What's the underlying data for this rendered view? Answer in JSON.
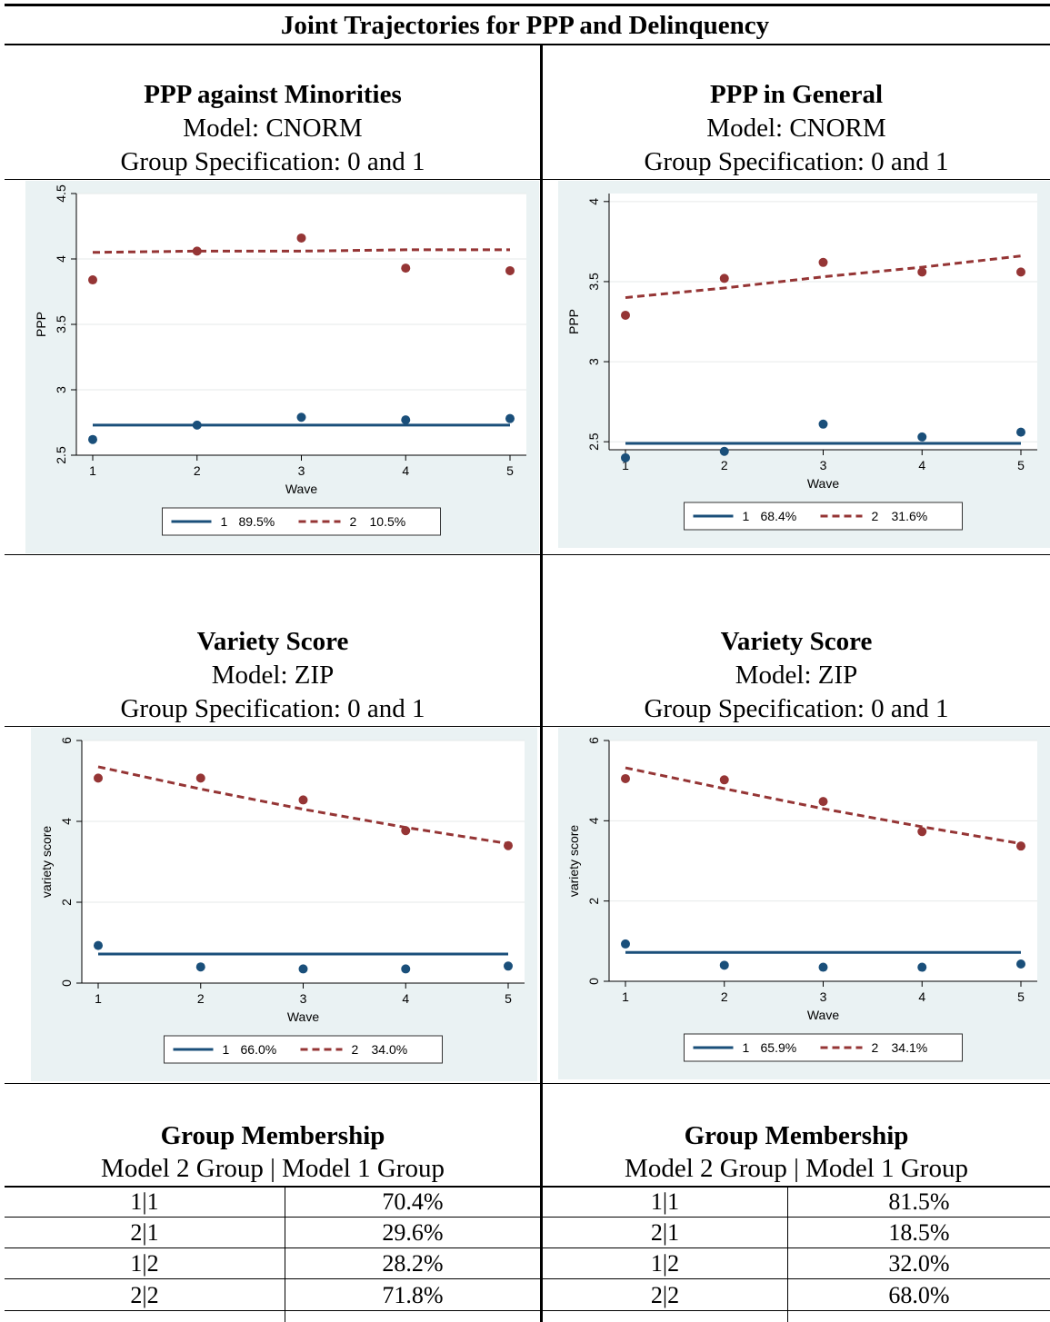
{
  "title": "Joint Trajectories for PPP and Delinquency",
  "panels": [
    {
      "heading": "PPP against Minorities",
      "model": "Model: CNORM",
      "spec": "Group Specification: 0 and 1",
      "chart": "ppp_minorities"
    },
    {
      "heading": "PPP in General",
      "model": "Model: CNORM",
      "spec": "Group Specification: 0 and 1",
      "chart": "ppp_general"
    },
    {
      "heading": "Variety Score",
      "model": "Model: ZIP",
      "spec": "Group Specification: 0 and 1",
      "chart": "variety_left"
    },
    {
      "heading": "Variety Score",
      "model": "Model: ZIP",
      "spec": "Group Specification: 0 and 1",
      "chart": "variety_right"
    }
  ],
  "membership": [
    {
      "heading": "Group Membership",
      "subheading": "Model 2 Group | Model 1 Group",
      "rows": [
        {
          "group": "1|1",
          "pct": "70.4%"
        },
        {
          "group": "2|1",
          "pct": "29.6%"
        },
        {
          "group": "1|2",
          "pct": "28.2%"
        },
        {
          "group": "2|2",
          "pct": "71.8%"
        }
      ]
    },
    {
      "heading": "Group Membership",
      "subheading": "Model 2 Group | Model 1 Group",
      "rows": [
        {
          "group": "1|1",
          "pct": "81.5%"
        },
        {
          "group": "2|1",
          "pct": "18.5%"
        },
        {
          "group": "1|2",
          "pct": "32.0%"
        },
        {
          "group": "2|2",
          "pct": "68.0%"
        }
      ]
    }
  ],
  "colors": {
    "group1": "#1a4f7a",
    "group2": "#953535",
    "panel_bg": "#eaf2f3"
  },
  "chart_data": [
    {
      "id": "ppp_minorities",
      "type": "line",
      "xlabel": "Wave",
      "ylabel": "PPP",
      "x": [
        1,
        2,
        3,
        4,
        5
      ],
      "xticks": [
        "1",
        "2",
        "3",
        "4",
        "5"
      ],
      "yticks": [
        "2.5",
        "3",
        "3.5",
        "4",
        "4.5"
      ],
      "ylim": [
        2.5,
        4.5
      ],
      "grid": true,
      "legend_position": "bottom",
      "series": [
        {
          "name": "1",
          "share": "89.5%",
          "style": "solid",
          "fit": [
            2.73,
            2.73,
            2.73,
            2.73,
            2.73
          ],
          "points": [
            2.62,
            2.73,
            2.79,
            2.77,
            2.78
          ]
        },
        {
          "name": "2",
          "share": "10.5%",
          "style": "dashed",
          "fit": [
            4.05,
            4.06,
            4.06,
            4.07,
            4.07
          ],
          "points": [
            3.84,
            4.06,
            4.16,
            3.93,
            3.91
          ]
        }
      ]
    },
    {
      "id": "ppp_general",
      "type": "line",
      "xlabel": "Wave",
      "ylabel": "PPP",
      "x": [
        1,
        2,
        3,
        4,
        5
      ],
      "xticks": [
        "1",
        "2",
        "3",
        "4",
        "5"
      ],
      "yticks": [
        "2.5",
        "3",
        "3.5",
        "4"
      ],
      "ylim": [
        2.45,
        4.05
      ],
      "grid": true,
      "legend_position": "bottom",
      "series": [
        {
          "name": "1",
          "share": "68.4%",
          "style": "solid",
          "fit": [
            2.49,
            2.49,
            2.49,
            2.49,
            2.49
          ],
          "points": [
            2.4,
            2.44,
            2.61,
            2.53,
            2.56
          ]
        },
        {
          "name": "2",
          "share": "31.6%",
          "style": "dashed",
          "fit": [
            3.4,
            3.46,
            3.53,
            3.59,
            3.66
          ],
          "points": [
            3.29,
            3.52,
            3.62,
            3.56,
            3.56
          ]
        }
      ]
    },
    {
      "id": "variety_left",
      "type": "line",
      "xlabel": "Wave",
      "ylabel": "variety score",
      "x": [
        1,
        2,
        3,
        4,
        5
      ],
      "xticks": [
        "1",
        "2",
        "3",
        "4",
        "5"
      ],
      "yticks": [
        "0",
        "2",
        "4",
        "6"
      ],
      "ylim": [
        0,
        6
      ],
      "grid": true,
      "legend_position": "bottom",
      "series": [
        {
          "name": "1",
          "share": "66.0%",
          "style": "solid",
          "fit": [
            0.72,
            0.72,
            0.72,
            0.72,
            0.72
          ],
          "points": [
            0.93,
            0.4,
            0.35,
            0.35,
            0.42
          ]
        },
        {
          "name": "2",
          "share": "34.0%",
          "style": "dashed",
          "fit": [
            5.35,
            4.8,
            4.3,
            3.85,
            3.45
          ],
          "points": [
            5.07,
            5.07,
            4.53,
            3.77,
            3.4
          ]
        }
      ]
    },
    {
      "id": "variety_right",
      "type": "line",
      "xlabel": "Wave",
      "ylabel": "variety score",
      "x": [
        1,
        2,
        3,
        4,
        5
      ],
      "xticks": [
        "1",
        "2",
        "3",
        "4",
        "5"
      ],
      "yticks": [
        "0",
        "2",
        "4",
        "6"
      ],
      "ylim": [
        0,
        6
      ],
      "grid": true,
      "legend_position": "bottom",
      "series": [
        {
          "name": "1",
          "share": "65.9%",
          "style": "solid",
          "fit": [
            0.72,
            0.72,
            0.72,
            0.72,
            0.72
          ],
          "points": [
            0.93,
            0.4,
            0.35,
            0.35,
            0.43
          ]
        },
        {
          "name": "2",
          "share": "34.1%",
          "style": "dashed",
          "fit": [
            5.32,
            4.8,
            4.3,
            3.85,
            3.43
          ],
          "points": [
            5.05,
            5.02,
            4.48,
            3.73,
            3.37
          ]
        }
      ]
    }
  ]
}
